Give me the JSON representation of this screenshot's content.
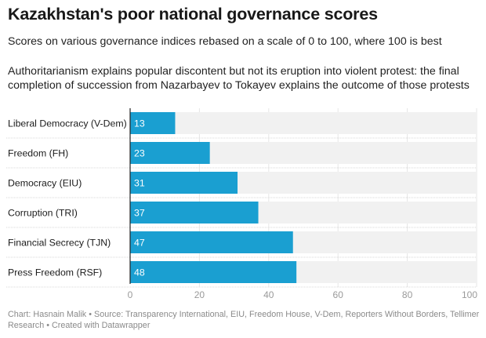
{
  "header": {
    "title": "Kazakhstan's poor national governance scores",
    "subtitle": "Scores on various governance indices rebased on a scale of 0 to 100, where 100 is best",
    "description": "Authoritarianism explains popular discontent but not its eruption into violent protest: the final completion of succession from Nazarbayev to Tokayev explains the outcome of those protests"
  },
  "chart_data": {
    "type": "bar",
    "orientation": "horizontal",
    "categories": [
      "Liberal Democracy (V-Dem)",
      "Freedom (FH)",
      "Democracy (EIU)",
      "Corruption (TRI)",
      "Financial Secrecy (TJN)",
      "Press Freedom (RSF)"
    ],
    "values": [
      13,
      23,
      31,
      37,
      47,
      48
    ],
    "xlim": [
      0,
      100
    ],
    "xticks": [
      0,
      20,
      40,
      60,
      80,
      100
    ],
    "grid": true,
    "legend": "none",
    "bar_color": "#1a9fd1",
    "track_color": "#f1f1f1"
  },
  "footer": {
    "credit": "Chart: Hasnain Malik • Source: Transparency International, EIU, Freedom House, V-Dem, Reporters Without Borders, Tellimer Research • Created with Datawrapper"
  }
}
